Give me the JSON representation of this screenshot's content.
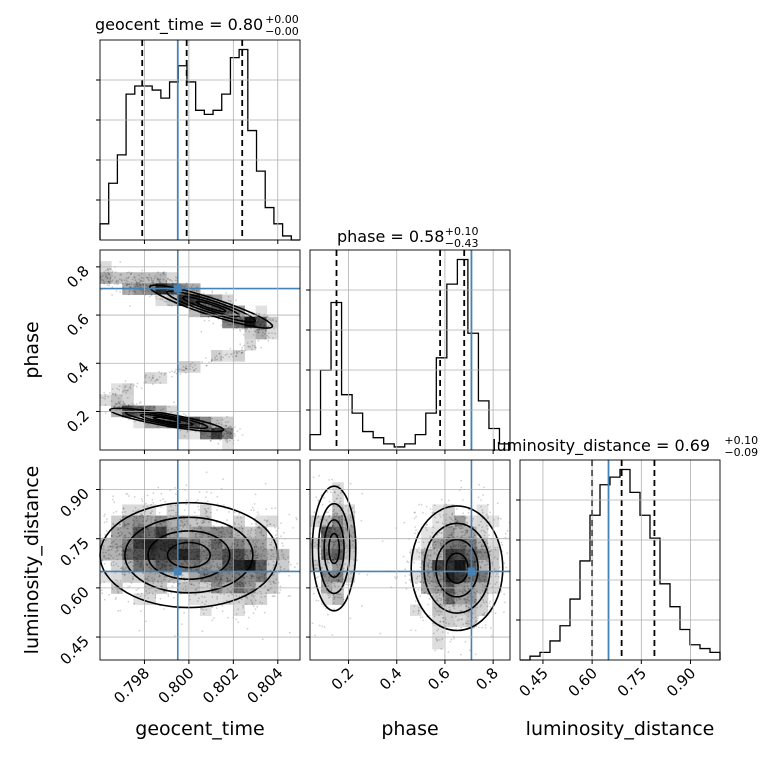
{
  "chart_data": {
    "type": "corner",
    "parameters": [
      "geocent_time",
      "phase",
      "luminosity_distance"
    ],
    "truths": {
      "geocent_time": 0.7995,
      "phase": 0.71,
      "luminosity_distance": 0.65
    },
    "accent_color": "#4682b4",
    "titles": [
      {
        "name": "geocent_time",
        "value": "0.80",
        "plus": "+0.00",
        "minus": "−0.00"
      },
      {
        "name": "phase",
        "value": "0.58",
        "plus": "+0.10",
        "minus": "−0.43"
      },
      {
        "name": "luminosity_distance",
        "value": "0.69",
        "plus": "+0.10",
        "minus": "−0.09"
      }
    ],
    "axis_labels": {
      "geocent_time": "geocent_time",
      "phase": "phase",
      "luminosity_distance": "luminosity_distance"
    },
    "ranges": {
      "geocent_time": [
        0.796,
        0.805
      ],
      "phase": [
        0.04,
        0.87
      ],
      "luminosity_distance": [
        0.38,
        0.99
      ]
    },
    "ticks": {
      "geocent_time": {
        "values": [
          0.798,
          0.8,
          0.802,
          0.804
        ],
        "labels": [
          "0.798",
          "0.800",
          "0.802",
          "0.804"
        ]
      },
      "phase": {
        "values": [
          0.2,
          0.4,
          0.6,
          0.8
        ],
        "labels": [
          "0.2",
          "0.4",
          "0.6",
          "0.8"
        ]
      },
      "luminosity_distance": {
        "values": [
          0.45,
          0.6,
          0.75,
          0.9
        ],
        "labels": [
          "0.45",
          "0.60",
          "0.75",
          "0.90"
        ]
      }
    },
    "quantiles": {
      "geocent_time": [
        0.7979,
        0.7999,
        0.8024
      ],
      "phase": [
        0.15,
        0.58,
        0.68
      ],
      "luminosity_distance": [
        0.6,
        0.69,
        0.79
      ]
    },
    "histograms": {
      "geocent_time": [
        4,
        14,
        21,
        36,
        38,
        38,
        37,
        35,
        39,
        43,
        39,
        32,
        31,
        32,
        36,
        45,
        47,
        27,
        17,
        8,
        4,
        1,
        0
      ],
      "phase": [
        5,
        26,
        48,
        18,
        12,
        6,
        4,
        2,
        1,
        2,
        5,
        12,
        30,
        54,
        62,
        38,
        16,
        7,
        2
      ],
      "luminosity_distance": [
        0,
        1,
        2,
        5,
        9,
        16,
        26,
        38,
        46,
        48,
        50,
        44,
        38,
        32,
        20,
        14,
        8,
        4,
        3,
        2
      ]
    },
    "modes_2d": {
      "phase_vs_geocent_time": [
        {
          "x": [
            0.7961,
            0.798,
            0.7995,
            0.8002,
            0.8014,
            0.8025,
            0.8036
          ],
          "y": [
            0.76,
            0.73,
            0.7,
            0.66,
            0.62,
            0.57,
            0.55
          ],
          "width": 0.05
        },
        {
          "x": [
            0.7966,
            0.798,
            0.7995,
            0.8009,
            0.802
          ],
          "y": [
            0.22,
            0.19,
            0.16,
            0.13,
            0.1
          ],
          "width": 0.035
        }
      ],
      "luminosity_distance_vs_geocent_time": [
        {
          "cx": 0.8,
          "cy": 0.71,
          "sx": 0.0019,
          "sy": 0.08
        },
        {
          "cx": 0.7979,
          "cy": 0.73,
          "sx": 0.001,
          "sy": 0.06
        },
        {
          "cx": 0.8024,
          "cy": 0.66,
          "sx": 0.001,
          "sy": 0.06
        }
      ],
      "luminosity_distance_vs_phase": [
        {
          "cx": 0.14,
          "cy": 0.72,
          "sx": 0.045,
          "sy": 0.09
        },
        {
          "cx": 0.65,
          "cy": 0.66,
          "sx": 0.09,
          "sy": 0.09
        }
      ]
    }
  }
}
